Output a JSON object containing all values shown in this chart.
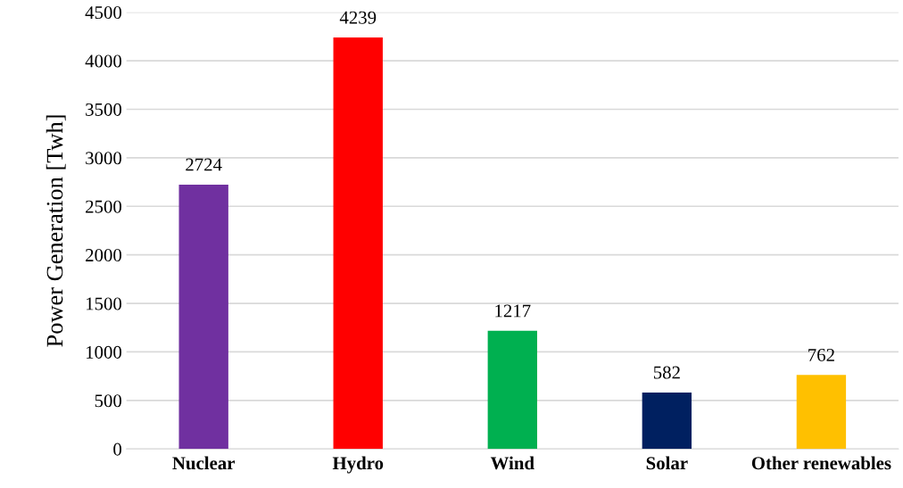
{
  "chart_data": {
    "type": "bar",
    "ylabel": "Power Generation [Twh]",
    "categories": [
      "Nuclear",
      "Hydro",
      "Wind",
      "Solar",
      "Other renewables"
    ],
    "values": [
      2724,
      4239,
      1217,
      582,
      762
    ],
    "colors": [
      "#7030a0",
      "#ff0000",
      "#00b050",
      "#002060",
      "#ffc000"
    ],
    "ylim": [
      0,
      4500
    ],
    "yticks": [
      0,
      500,
      1000,
      1500,
      2000,
      2500,
      3000,
      3500,
      4000,
      4500
    ],
    "grid": "y",
    "data_labels": true
  }
}
